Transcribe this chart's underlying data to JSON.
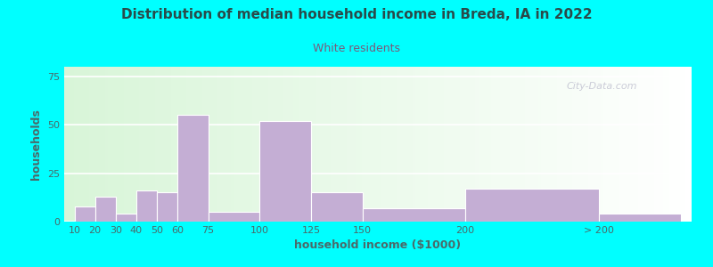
{
  "title": "Distribution of median household income in Breda, IA in 2022",
  "subtitle": "White residents",
  "xlabel": "household income ($1000)",
  "ylabel": "households",
  "background_color": "#00FFFF",
  "bar_color": "#c4aed4",
  "title_color": "#2a4a4a",
  "subtitle_color": "#7a5a7a",
  "axis_label_color": "#4a6a6a",
  "tick_color": "#4a6a6a",
  "watermark": "City-Data.com",
  "categories": [
    "10",
    "20",
    "30",
    "40",
    "50",
    "60",
    "75",
    "100",
    "125",
    "150",
    "200",
    "> 200"
  ],
  "values": [
    8,
    13,
    4,
    16,
    15,
    55,
    5,
    52,
    15,
    7,
    17,
    4
  ],
  "ylim": [
    0,
    80
  ],
  "yticks": [
    0,
    25,
    50,
    75
  ],
  "x_positions": [
    10,
    20,
    30,
    40,
    50,
    60,
    75,
    100,
    125,
    150,
    200,
    265
  ],
  "bar_widths": [
    10,
    10,
    10,
    10,
    10,
    15,
    25,
    25,
    25,
    50,
    65,
    40
  ]
}
